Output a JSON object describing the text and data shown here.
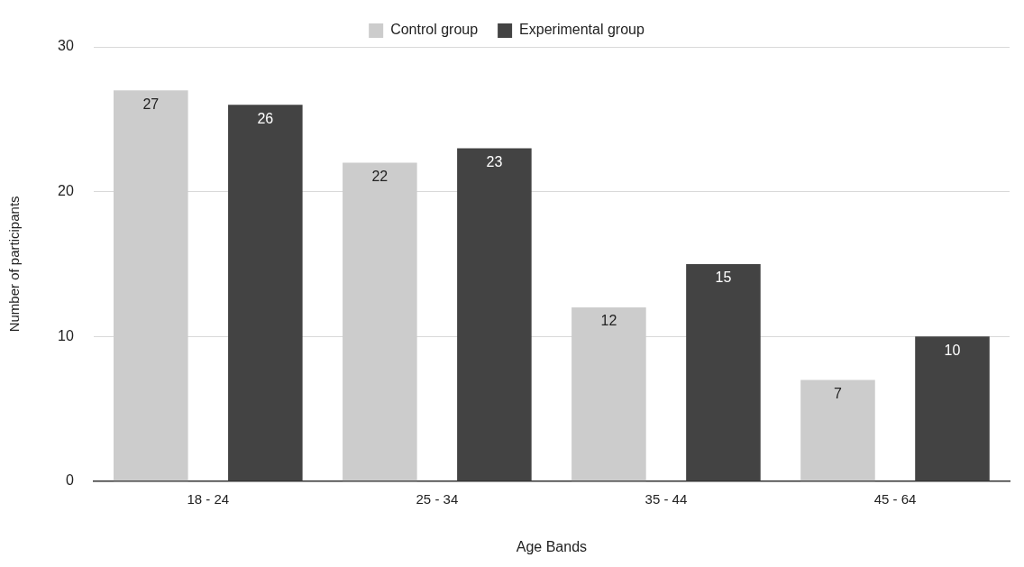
{
  "chart_data": {
    "type": "bar",
    "xlabel": "Age Bands",
    "ylabel": "Number of participants",
    "categories": [
      "18 - 24",
      "25 - 34",
      "35 - 44",
      "45 - 64"
    ],
    "series": [
      {
        "name": "Control group",
        "color": "#cccccc",
        "values": [
          27,
          22,
          12,
          7
        ]
      },
      {
        "name": "Experimental group",
        "color": "#434343",
        "values": [
          26,
          23,
          15,
          10
        ]
      }
    ],
    "ylim": [
      0,
      30
    ],
    "yticks": [
      0,
      10,
      20,
      30
    ],
    "grid": "y",
    "legend": "top",
    "data_labels": true
  }
}
